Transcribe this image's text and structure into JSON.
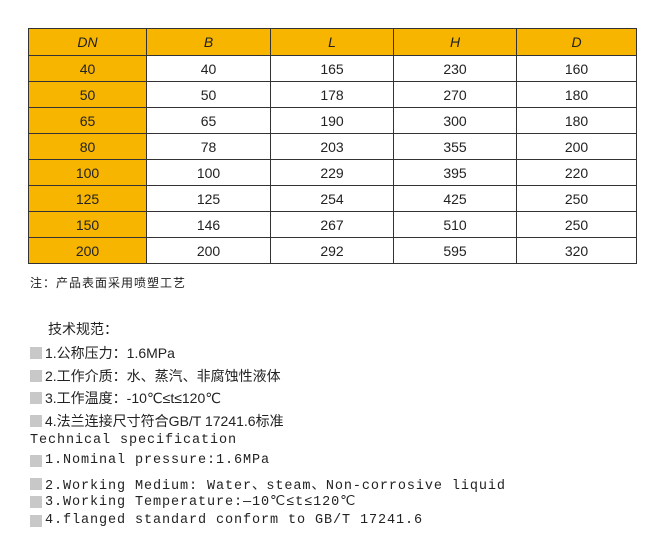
{
  "table": {
    "header": [
      "DN",
      "B",
      "L",
      "H",
      "D"
    ],
    "rows": [
      [
        "40",
        "40",
        "165",
        "230",
        "160"
      ],
      [
        "50",
        "50",
        "178",
        "270",
        "180"
      ],
      [
        "65",
        "65",
        "190",
        "300",
        "180"
      ],
      [
        "80",
        "78",
        "203",
        "355",
        "200"
      ],
      [
        "100",
        "100",
        "229",
        "395",
        "220"
      ],
      [
        "125",
        "125",
        "254",
        "425",
        "250"
      ],
      [
        "150",
        "146",
        "267",
        "510",
        "250"
      ],
      [
        "200",
        "200",
        "292",
        "595",
        "320"
      ]
    ]
  },
  "note": "注：产品表面采用喷塑工艺",
  "spec": {
    "title": "技术规范：",
    "items": [
      "1.公称压力：1.6MPa",
      "2.工作介质：水、蒸汽、非腐蚀性液体",
      "3.工作温度：-10℃≤t≤120℃",
      "4.法兰连接尺寸符合GB/T 17241.6标准"
    ]
  },
  "english": {
    "title": "Technical specification",
    "items": [
      "1.Nominal pressure:1.6MPa",
      "2.Working Medium: Water、steam、Non-corrosive liquid",
      "3.Working Temperature:—10℃≤t≤120℃",
      "4.flanged standard conform to GB/T 17241.6"
    ]
  }
}
